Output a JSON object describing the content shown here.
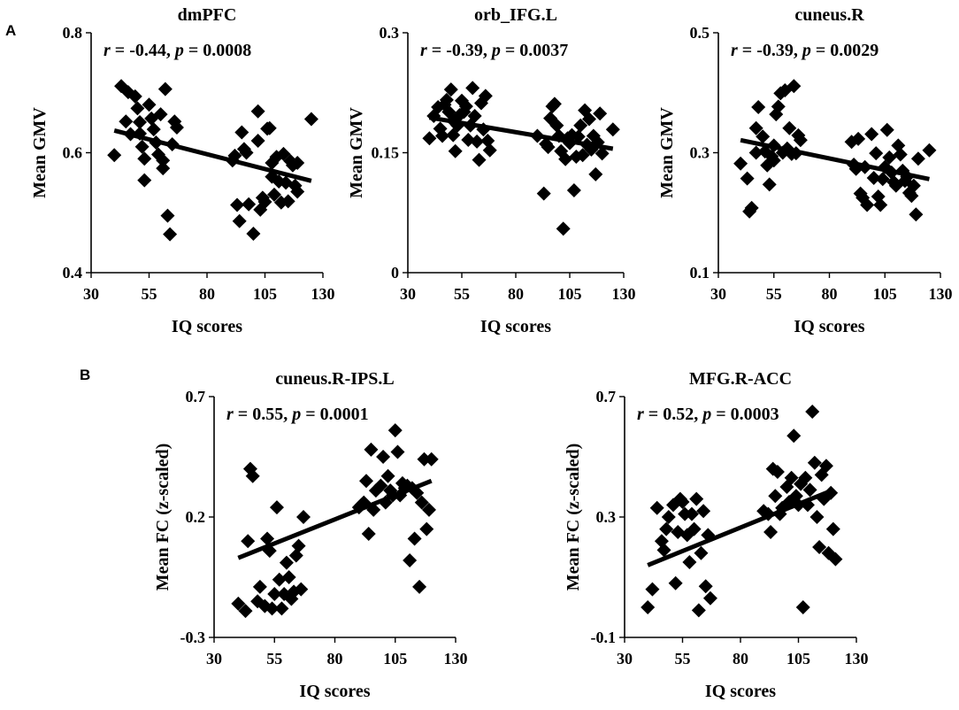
{
  "panel_labels": [
    "A",
    "B"
  ],
  "chart_data": [
    {
      "type": "scatter",
      "panel": "A",
      "title": "dmPFC",
      "xlabel": "IQ scores",
      "ylabel": "Mean GMV",
      "xlim": [
        30,
        130
      ],
      "ylim": [
        0.4,
        0.8
      ],
      "xticks": [
        30,
        55,
        80,
        105,
        130
      ],
      "xtick_labels": [
        "30",
        "55",
        "80",
        "105",
        "130"
      ],
      "yticks": [
        0.4,
        0.6,
        0.8
      ],
      "ytick_labels": [
        "0.4",
        "0.6",
        "0.8"
      ],
      "r_label": "r",
      "r_value": " = -0.44, ",
      "p_label": "p",
      "p_value": " = 0.0008",
      "fit": {
        "x": [
          40,
          125
        ],
        "y": [
          0.637,
          0.553
        ]
      },
      "points": [
        [
          40,
          0.596
        ],
        [
          43,
          0.711
        ],
        [
          45,
          0.652
        ],
        [
          46,
          0.701
        ],
        [
          47,
          0.631
        ],
        [
          49,
          0.694
        ],
        [
          50,
          0.674
        ],
        [
          51,
          0.651
        ],
        [
          51,
          0.632
        ],
        [
          52,
          0.61
        ],
        [
          53,
          0.59
        ],
        [
          53,
          0.554
        ],
        [
          55,
          0.68
        ],
        [
          56,
          0.657
        ],
        [
          57,
          0.639
        ],
        [
          58,
          0.617
        ],
        [
          59,
          0.597
        ],
        [
          60,
          0.664
        ],
        [
          61,
          0.574
        ],
        [
          61,
          0.587
        ],
        [
          62,
          0.706
        ],
        [
          63,
          0.495
        ],
        [
          64,
          0.464
        ],
        [
          65,
          0.614
        ],
        [
          66,
          0.652
        ],
        [
          67,
          0.642
        ],
        [
          91,
          0.587
        ],
        [
          92,
          0.595
        ],
        [
          93,
          0.513
        ],
        [
          94,
          0.486
        ],
        [
          95,
          0.634
        ],
        [
          96,
          0.606
        ],
        [
          97,
          0.6
        ],
        [
          98,
          0.514
        ],
        [
          100,
          0.465
        ],
        [
          102,
          0.669
        ],
        [
          102,
          0.62
        ],
        [
          103,
          0.505
        ],
        [
          104,
          0.525
        ],
        [
          105,
          0.518
        ],
        [
          106,
          0.64
        ],
        [
          107,
          0.641
        ],
        [
          108,
          0.583
        ],
        [
          108,
          0.56
        ],
        [
          109,
          0.53
        ],
        [
          110,
          0.593
        ],
        [
          111,
          0.552
        ],
        [
          112,
          0.517
        ],
        [
          113,
          0.598
        ],
        [
          114,
          0.55
        ],
        [
          115,
          0.519
        ],
        [
          116,
          0.586
        ],
        [
          117,
          0.579
        ],
        [
          118,
          0.545
        ],
        [
          119,
          0.535
        ],
        [
          119,
          0.583
        ],
        [
          125,
          0.656
        ]
      ]
    },
    {
      "type": "scatter",
      "panel": "A",
      "title": "orb_IFG.L",
      "xlabel": "IQ scores",
      "ylabel": "Mean GMV",
      "xlim": [
        30,
        130
      ],
      "ylim": [
        0,
        0.3
      ],
      "xticks": [
        30,
        55,
        80,
        105,
        130
      ],
      "xtick_labels": [
        "30",
        "55",
        "80",
        "105",
        "130"
      ],
      "yticks": [
        0,
        0.15,
        0.3
      ],
      "ytick_labels": [
        "0",
        "0.15",
        "0.3"
      ],
      "r_label": "r",
      "r_value": " = -0.39, ",
      "p_label": "p",
      "p_value": " = 0.0037",
      "fit": {
        "x": [
          40,
          125
        ],
        "y": [
          0.194,
          0.155
        ]
      },
      "points": [
        [
          40,
          0.168
        ],
        [
          42,
          0.196
        ],
        [
          44,
          0.207
        ],
        [
          45,
          0.18
        ],
        [
          46,
          0.171
        ],
        [
          47,
          0.21
        ],
        [
          48,
          0.216
        ],
        [
          49,
          0.201
        ],
        [
          50,
          0.229
        ],
        [
          51,
          0.19
        ],
        [
          51,
          0.172
        ],
        [
          52,
          0.152
        ],
        [
          53,
          0.184
        ],
        [
          54,
          0.197
        ],
        [
          55,
          0.215
        ],
        [
          56,
          0.201
        ],
        [
          57,
          0.208
        ],
        [
          58,
          0.166
        ],
        [
          59,
          0.184
        ],
        [
          60,
          0.231
        ],
        [
          61,
          0.196
        ],
        [
          62,
          0.164
        ],
        [
          63,
          0.141
        ],
        [
          64,
          0.212
        ],
        [
          65,
          0.179
        ],
        [
          66,
          0.221
        ],
        [
          67,
          0.165
        ],
        [
          68,
          0.153
        ],
        [
          90,
          0.171
        ],
        [
          93,
          0.099
        ],
        [
          94,
          0.161
        ],
        [
          95,
          0.157
        ],
        [
          96,
          0.193
        ],
        [
          97,
          0.208
        ],
        [
          98,
          0.211
        ],
        [
          99,
          0.184
        ],
        [
          100,
          0.171
        ],
        [
          101,
          0.152
        ],
        [
          102,
          0.055
        ],
        [
          103,
          0.142
        ],
        [
          104,
          0.168
        ],
        [
          105,
          0.162
        ],
        [
          106,
          0.172
        ],
        [
          107,
          0.103
        ],
        [
          108,
          0.145
        ],
        [
          109,
          0.17
        ],
        [
          110,
          0.184
        ],
        [
          111,
          0.147
        ],
        [
          112,
          0.203
        ],
        [
          113,
          0.16
        ],
        [
          114,
          0.192
        ],
        [
          115,
          0.154
        ],
        [
          116,
          0.171
        ],
        [
          117,
          0.123
        ],
        [
          118,
          0.163
        ],
        [
          119,
          0.199
        ],
        [
          120,
          0.149
        ],
        [
          125,
          0.179
        ]
      ]
    },
    {
      "type": "scatter",
      "panel": "A",
      "title": "cuneus.R",
      "xlabel": "IQ scores",
      "ylabel": "Mean GMV",
      "xlim": [
        30,
        130
      ],
      "ylim": [
        0.1,
        0.5
      ],
      "xticks": [
        30,
        55,
        80,
        105,
        130
      ],
      "xtick_labels": [
        "30",
        "55",
        "80",
        "105",
        "130"
      ],
      "yticks": [
        0.1,
        0.3,
        0.5
      ],
      "ytick_labels": [
        "0.1",
        "0.3",
        "0.5"
      ],
      "r_label": "r",
      "r_value": " = -0.39, ",
      "p_label": "p",
      "p_value": " = 0.0029",
      "fit": {
        "x": [
          40,
          125
        ],
        "y": [
          0.321,
          0.256
        ]
      },
      "points": [
        [
          40,
          0.282
        ],
        [
          43,
          0.257
        ],
        [
          44,
          0.202
        ],
        [
          45,
          0.208
        ],
        [
          47,
          0.3
        ],
        [
          47,
          0.341
        ],
        [
          48,
          0.376
        ],
        [
          50,
          0.327
        ],
        [
          51,
          0.302
        ],
        [
          52,
          0.279
        ],
        [
          53,
          0.247
        ],
        [
          54,
          0.294
        ],
        [
          55,
          0.287
        ],
        [
          55,
          0.312
        ],
        [
          56,
          0.364
        ],
        [
          57,
          0.377
        ],
        [
          58,
          0.399
        ],
        [
          59,
          0.3
        ],
        [
          60,
          0.404
        ],
        [
          61,
          0.307
        ],
        [
          62,
          0.341
        ],
        [
          63,
          0.298
        ],
        [
          64,
          0.411
        ],
        [
          65,
          0.299
        ],
        [
          66,
          0.329
        ],
        [
          67,
          0.321
        ],
        [
          90,
          0.318
        ],
        [
          91,
          0.28
        ],
        [
          92,
          0.273
        ],
        [
          93,
          0.323
        ],
        [
          94,
          0.232
        ],
        [
          95,
          0.225
        ],
        [
          96,
          0.276
        ],
        [
          97,
          0.213
        ],
        [
          99,
          0.331
        ],
        [
          100,
          0.258
        ],
        [
          101,
          0.299
        ],
        [
          102,
          0.227
        ],
        [
          103,
          0.213
        ],
        [
          104,
          0.256
        ],
        [
          105,
          0.276
        ],
        [
          106,
          0.338
        ],
        [
          107,
          0.292
        ],
        [
          108,
          0.267
        ],
        [
          109,
          0.251
        ],
        [
          110,
          0.245
        ],
        [
          111,
          0.312
        ],
        [
          112,
          0.297
        ],
        [
          113,
          0.27
        ],
        [
          114,
          0.253
        ],
        [
          115,
          0.26
        ],
        [
          116,
          0.233
        ],
        [
          117,
          0.228
        ],
        [
          118,
          0.245
        ],
        [
          119,
          0.197
        ],
        [
          120,
          0.29
        ],
        [
          125,
          0.304
        ]
      ]
    },
    {
      "type": "scatter",
      "panel": "B",
      "title": "cuneus.R-IPS.L",
      "xlabel": "IQ scores",
      "ylabel": "Mean FC (z-scaled)",
      "xlim": [
        30,
        130
      ],
      "ylim": [
        -0.3,
        0.7
      ],
      "xticks": [
        30,
        55,
        80,
        105,
        130
      ],
      "xtick_labels": [
        "30",
        "55",
        "80",
        "105",
        "130"
      ],
      "yticks": [
        -0.3,
        0.2,
        0.7
      ],
      "ytick_labels": [
        "-0.3",
        "0.2",
        "0.7"
      ],
      "r_label": "r",
      "r_value": " = 0.55, ",
      "p_label": "p",
      "p_value": " = 0.0001",
      "fit": {
        "x": [
          40,
          120
        ],
        "y": [
          0.03,
          0.35
        ]
      },
      "points": [
        [
          40,
          -0.16
        ],
        [
          43,
          -0.19
        ],
        [
          44,
          0.1
        ],
        [
          45,
          0.4
        ],
        [
          46,
          0.37
        ],
        [
          48,
          -0.15
        ],
        [
          49,
          -0.09
        ],
        [
          51,
          -0.17
        ],
        [
          52,
          0.11
        ],
        [
          53,
          0.06
        ],
        [
          54,
          -0.18
        ],
        [
          55,
          -0.12
        ],
        [
          56,
          0.24
        ],
        [
          57,
          -0.06
        ],
        [
          58,
          -0.18
        ],
        [
          59,
          -0.12
        ],
        [
          60,
          0.01
        ],
        [
          61,
          -0.05
        ],
        [
          62,
          -0.14
        ],
        [
          63,
          -0.11
        ],
        [
          64,
          0.04
        ],
        [
          65,
          0.08
        ],
        [
          66,
          -0.1
        ],
        [
          67,
          0.2
        ],
        [
          90,
          0.24
        ],
        [
          91,
          0.25
        ],
        [
          92,
          0.26
        ],
        [
          93,
          0.35
        ],
        [
          94,
          0.13
        ],
        [
          95,
          0.48
        ],
        [
          96,
          0.23
        ],
        [
          97,
          0.31
        ],
        [
          99,
          0.33
        ],
        [
          100,
          0.45
        ],
        [
          101,
          0.26
        ],
        [
          102,
          0.37
        ],
        [
          103,
          0.31
        ],
        [
          104,
          0.29
        ],
        [
          105,
          0.56
        ],
        [
          106,
          0.47
        ],
        [
          107,
          0.29
        ],
        [
          108,
          0.34
        ],
        [
          109,
          0.32
        ],
        [
          110,
          0.33
        ],
        [
          111,
          0.02
        ],
        [
          112,
          0.32
        ],
        [
          113,
          0.11
        ],
        [
          114,
          0.3
        ],
        [
          115,
          -0.09
        ],
        [
          116,
          0.26
        ],
        [
          117,
          0.44
        ],
        [
          118,
          0.15
        ],
        [
          119,
          0.23
        ],
        [
          120,
          0.44
        ]
      ]
    },
    {
      "type": "scatter",
      "panel": "B",
      "title": "MFG.R-ACC",
      "xlabel": "IQ scores",
      "ylabel": "Mean FC (z-scaled)",
      "xlim": [
        30,
        130
      ],
      "ylim": [
        -0.1,
        0.7
      ],
      "xticks": [
        30,
        55,
        80,
        105,
        130
      ],
      "xtick_labels": [
        "30",
        "55",
        "80",
        "105",
        "130"
      ],
      "yticks": [
        -0.1,
        0.3,
        0.7
      ],
      "ytick_labels": [
        "-0.1",
        "0.3",
        "0.7"
      ],
      "r_label": "r",
      "r_value": " = 0.52, ",
      "p_label": "p",
      "p_value": " = 0.0003",
      "fit": {
        "x": [
          40,
          120
        ],
        "y": [
          0.14,
          0.39
        ]
      },
      "points": [
        [
          40,
          0.0
        ],
        [
          42,
          0.06
        ],
        [
          44,
          0.33
        ],
        [
          46,
          0.22
        ],
        [
          47,
          0.19
        ],
        [
          48,
          0.26
        ],
        [
          49,
          0.3
        ],
        [
          51,
          0.34
        ],
        [
          52,
          0.08
        ],
        [
          53,
          0.25
        ],
        [
          54,
          0.36
        ],
        [
          55,
          0.35
        ],
        [
          56,
          0.31
        ],
        [
          57,
          0.24
        ],
        [
          58,
          0.15
        ],
        [
          59,
          0.31
        ],
        [
          60,
          0.26
        ],
        [
          61,
          0.36
        ],
        [
          62,
          -0.01
        ],
        [
          63,
          0.18
        ],
        [
          64,
          0.32
        ],
        [
          65,
          0.07
        ],
        [
          66,
          0.24
        ],
        [
          67,
          0.03
        ],
        [
          90,
          0.32
        ],
        [
          92,
          0.31
        ],
        [
          93,
          0.25
        ],
        [
          94,
          0.46
        ],
        [
          95,
          0.37
        ],
        [
          96,
          0.45
        ],
        [
          97,
          0.31
        ],
        [
          98,
          0.33
        ],
        [
          100,
          0.4
        ],
        [
          101,
          0.35
        ],
        [
          102,
          0.43
        ],
        [
          103,
          0.57
        ],
        [
          104,
          0.37
        ],
        [
          105,
          0.34
        ],
        [
          106,
          0.41
        ],
        [
          107,
          0.0
        ],
        [
          108,
          0.43
        ],
        [
          109,
          0.34
        ],
        [
          110,
          0.39
        ],
        [
          111,
          0.65
        ],
        [
          112,
          0.48
        ],
        [
          113,
          0.3
        ],
        [
          114,
          0.2
        ],
        [
          115,
          0.44
        ],
        [
          116,
          0.36
        ],
        [
          117,
          0.47
        ],
        [
          118,
          0.18
        ],
        [
          119,
          0.38
        ],
        [
          120,
          0.26
        ],
        [
          121,
          0.16
        ]
      ]
    }
  ]
}
